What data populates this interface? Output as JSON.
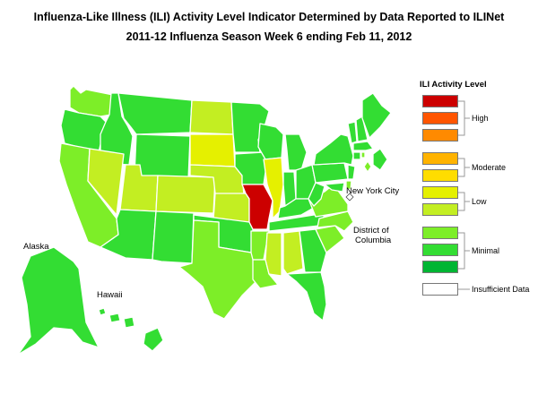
{
  "title_line1": "Influenza-Like Illness (ILI) Activity Level Indicator Determined by Data Reported to ILINet",
  "title_line2": "2011-12  Influenza Season Week  6 ending Feb 11, 2012",
  "legend": {
    "title": "ILI Activity Level",
    "swatches": [
      "#cc0000",
      "#ff5500",
      "#ff8a00",
      "#ffb300",
      "#ffdd00",
      "#e5f000",
      "#c3ee22",
      "#7dee28",
      "#33dd33",
      "#00b533",
      "#ffffff"
    ],
    "groups": {
      "high": "High",
      "moderate": "Moderate",
      "low": "Low",
      "minimal": "Minimal",
      "insufficient": "Insufficient Data"
    }
  },
  "labels": {
    "alaska": "Alaska",
    "hawaii": "Hawaii",
    "nyc": "New York City",
    "dc_line1": "District of",
    "dc_line2": "Columbia"
  },
  "activity_colors": {
    "level10": "#cc0000",
    "level6": "#e5f000",
    "level5": "#c3ee22",
    "level3": "#7dee28",
    "level2": "#33dd33",
    "level1": "#00b533"
  }
}
